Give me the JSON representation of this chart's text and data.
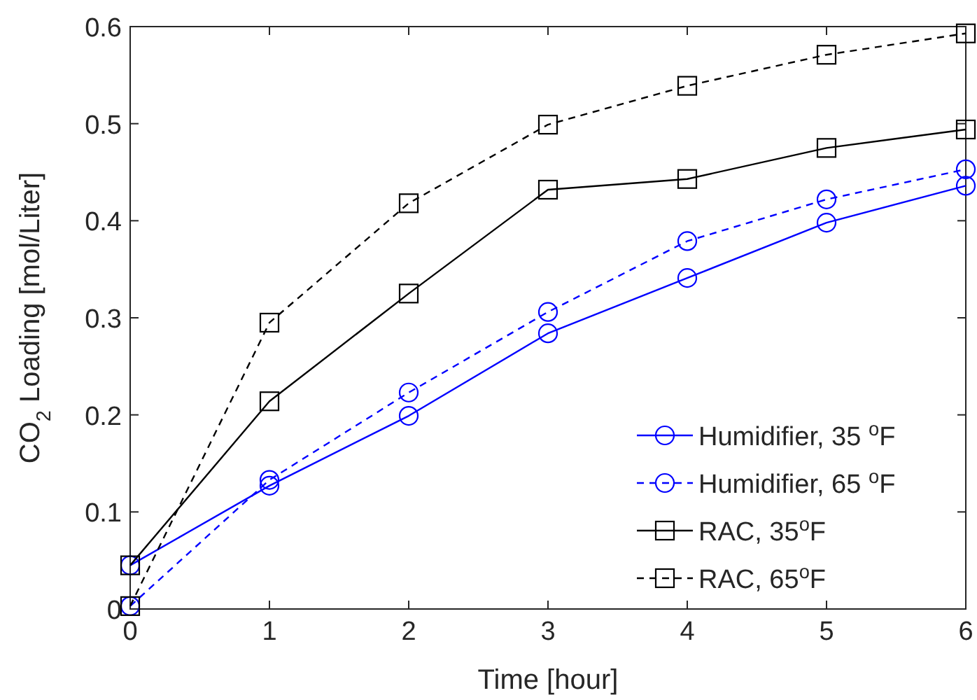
{
  "chart_data": {
    "type": "line",
    "xlabel": "Time [hour]",
    "ylabel": "CO$_{2}$ Loading [mol/Liter]",
    "x": [
      0,
      1,
      2,
      3,
      4,
      5,
      6
    ],
    "xlim": [
      0,
      6
    ],
    "xticks": [
      0,
      1,
      2,
      3,
      4,
      5,
      6
    ],
    "ylim": [
      0,
      0.6
    ],
    "yticks": [
      0,
      0.1,
      0.2,
      0.3,
      0.4,
      0.5,
      0.6
    ],
    "grid": false,
    "legend": "bottom right",
    "series": [
      {
        "name": "Humidifier, 35 $^{o}$F",
        "color": "#0000ff",
        "marker": "circle",
        "line_style": "solid",
        "values": [
          0.045,
          0.127,
          0.199,
          0.284,
          0.341,
          0.398,
          0.436
        ]
      },
      {
        "name": "Humidifier, 65 $^{o}$F",
        "color": "#0000ff",
        "marker": "circle",
        "line_style": "dashed",
        "values": [
          0.003,
          0.133,
          0.223,
          0.306,
          0.379,
          0.422,
          0.453
        ]
      },
      {
        "name": "RAC, 35$^{o}$F",
        "color": "#000000",
        "marker": "square",
        "line_style": "solid",
        "values": [
          0.045,
          0.214,
          0.325,
          0.432,
          0.443,
          0.475,
          0.494
        ]
      },
      {
        "name": "RAC, 65$^{o}$F",
        "color": "#000000",
        "marker": "square",
        "line_style": "dashed",
        "values": [
          0.003,
          0.295,
          0.418,
          0.499,
          0.539,
          0.571,
          0.593
        ]
      }
    ]
  }
}
